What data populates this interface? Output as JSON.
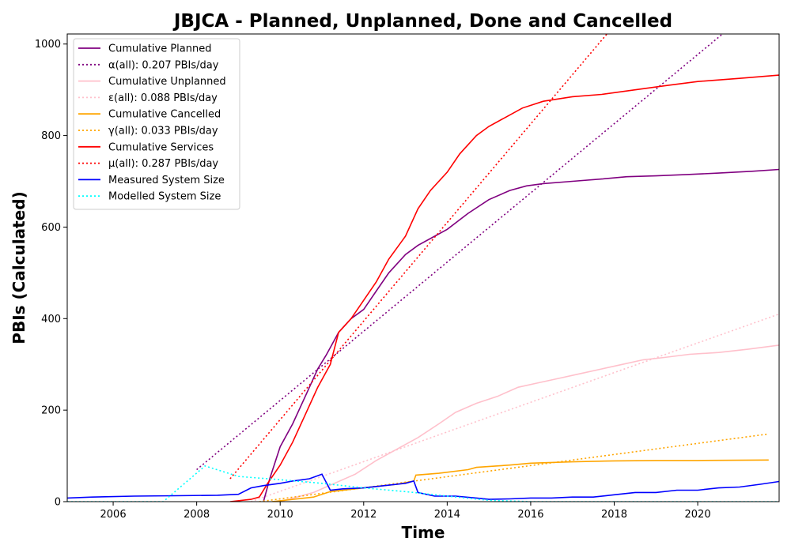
{
  "chart_data": {
    "type": "line",
    "title": "JBJCA - Planned, Unplanned, Done  and Cancelled",
    "xlabel": "Time",
    "ylabel": "PBIs (Calculated)",
    "xlim": [
      2004.9,
      2021.95
    ],
    "ylim": [
      0,
      1022
    ],
    "x_ticks": [
      2006,
      2008,
      2010,
      2012,
      2014,
      2016,
      2018,
      2020
    ],
    "y_ticks": [
      0,
      200,
      400,
      600,
      800,
      1000
    ],
    "grid": false,
    "legend_position": "top-left",
    "series": [
      {
        "name": "Cumulative Planned",
        "color": "#800080",
        "style": "solid",
        "points": [
          [
            2009.6,
            0
          ],
          [
            2009.75,
            50
          ],
          [
            2010.0,
            120
          ],
          [
            2010.3,
            170
          ],
          [
            2010.6,
            230
          ],
          [
            2010.9,
            290
          ],
          [
            2011.1,
            320
          ],
          [
            2011.4,
            370
          ],
          [
            2011.7,
            400
          ],
          [
            2012.0,
            420
          ],
          [
            2012.3,
            460
          ],
          [
            2012.6,
            500
          ],
          [
            2013.0,
            540
          ],
          [
            2013.3,
            560
          ],
          [
            2013.7,
            580
          ],
          [
            2014.0,
            595
          ],
          [
            2014.5,
            630
          ],
          [
            2015.0,
            660
          ],
          [
            2015.5,
            680
          ],
          [
            2015.9,
            690
          ],
          [
            2016.3,
            695
          ],
          [
            2017.0,
            700
          ],
          [
            2017.7,
            705
          ],
          [
            2018.3,
            710
          ],
          [
            2019.0,
            712
          ],
          [
            2019.8,
            715
          ],
          [
            2020.5,
            718
          ],
          [
            2021.3,
            722
          ],
          [
            2021.95,
            726
          ]
        ]
      },
      {
        "name": "α(all): 0.207 PBIs/day",
        "color": "#800080",
        "style": "dotted",
        "points": [
          [
            2008.0,
            70
          ],
          [
            2020.7,
            1030
          ]
        ]
      },
      {
        "name": "Cumulative Unplanned",
        "color": "#ffc0cb",
        "style": "solid",
        "points": [
          [
            2010.0,
            0
          ],
          [
            2010.8,
            20
          ],
          [
            2011.3,
            40
          ],
          [
            2011.8,
            60
          ],
          [
            2012.3,
            90
          ],
          [
            2012.8,
            115
          ],
          [
            2013.3,
            140
          ],
          [
            2013.8,
            170
          ],
          [
            2014.2,
            195
          ],
          [
            2014.7,
            215
          ],
          [
            2015.2,
            230
          ],
          [
            2015.7,
            250
          ],
          [
            2016.2,
            260
          ],
          [
            2016.7,
            270
          ],
          [
            2017.2,
            280
          ],
          [
            2017.7,
            290
          ],
          [
            2018.2,
            300
          ],
          [
            2018.7,
            310
          ],
          [
            2019.2,
            315
          ],
          [
            2019.8,
            322
          ],
          [
            2020.5,
            326
          ],
          [
            2021.2,
            333
          ],
          [
            2021.95,
            342
          ]
        ]
      },
      {
        "name": "ε(all): 0.088 PBIs/day",
        "color": "#ffc0cb",
        "style": "dotted",
        "points": [
          [
            2009.3,
            0
          ],
          [
            2021.95,
            410
          ]
        ]
      },
      {
        "name": "Cumulative Cancelled",
        "color": "#ffa500",
        "style": "solid",
        "points": [
          [
            2009.8,
            0
          ],
          [
            2010.8,
            10
          ],
          [
            2011.2,
            22
          ],
          [
            2012.0,
            30
          ],
          [
            2012.8,
            38
          ],
          [
            2013.2,
            45
          ],
          [
            2013.25,
            58
          ],
          [
            2013.8,
            62
          ],
          [
            2014.5,
            70
          ],
          [
            2014.7,
            75
          ],
          [
            2015.5,
            80
          ],
          [
            2016.0,
            84
          ],
          [
            2017.0,
            87
          ],
          [
            2018.0,
            89
          ],
          [
            2019.0,
            90
          ],
          [
            2020.0,
            90
          ],
          [
            2021.7,
            91
          ]
        ]
      },
      {
        "name": "γ(all): 0.033 PBIs/day",
        "color": "#ffa500",
        "style": "dotted",
        "points": [
          [
            2009.5,
            0
          ],
          [
            2021.7,
            148
          ]
        ]
      },
      {
        "name": "Cumulative Services",
        "color": "#ff0000",
        "style": "solid",
        "points": [
          [
            2008.8,
            0
          ],
          [
            2009.3,
            5
          ],
          [
            2009.5,
            10
          ],
          [
            2009.7,
            40
          ],
          [
            2010.0,
            80
          ],
          [
            2010.3,
            130
          ],
          [
            2010.6,
            190
          ],
          [
            2010.9,
            250
          ],
          [
            2011.2,
            300
          ],
          [
            2011.4,
            370
          ],
          [
            2011.7,
            400
          ],
          [
            2012.0,
            440
          ],
          [
            2012.3,
            480
          ],
          [
            2012.6,
            530
          ],
          [
            2013.0,
            580
          ],
          [
            2013.3,
            640
          ],
          [
            2013.6,
            680
          ],
          [
            2014.0,
            720
          ],
          [
            2014.3,
            760
          ],
          [
            2014.7,
            800
          ],
          [
            2015.0,
            820
          ],
          [
            2015.4,
            840
          ],
          [
            2015.8,
            860
          ],
          [
            2016.3,
            875
          ],
          [
            2017.0,
            885
          ],
          [
            2017.7,
            890
          ],
          [
            2018.5,
            900
          ],
          [
            2019.3,
            910
          ],
          [
            2020.0,
            918
          ],
          [
            2021.0,
            925
          ],
          [
            2021.95,
            932
          ]
        ]
      },
      {
        "name": "μ(all): 0.287 PBIs/day",
        "color": "#ff0000",
        "style": "dotted",
        "points": [
          [
            2008.8,
            50
          ],
          [
            2017.9,
            1030
          ]
        ]
      },
      {
        "name": "Measured System Size",
        "color": "#0000ff",
        "style": "solid",
        "points": [
          [
            2004.9,
            8
          ],
          [
            2005.5,
            10
          ],
          [
            2006.5,
            12
          ],
          [
            2007.5,
            13
          ],
          [
            2008.5,
            14
          ],
          [
            2009.0,
            16
          ],
          [
            2009.3,
            30
          ],
          [
            2009.6,
            35
          ],
          [
            2010.0,
            40
          ],
          [
            2010.3,
            45
          ],
          [
            2010.7,
            50
          ],
          [
            2011.0,
            60
          ],
          [
            2011.2,
            25
          ],
          [
            2011.5,
            28
          ],
          [
            2012.0,
            30
          ],
          [
            2012.5,
            35
          ],
          [
            2013.0,
            40
          ],
          [
            2013.2,
            45
          ],
          [
            2013.3,
            20
          ],
          [
            2013.7,
            12
          ],
          [
            2014.2,
            12
          ],
          [
            2014.7,
            8
          ],
          [
            2015.0,
            5
          ],
          [
            2015.5,
            6
          ],
          [
            2016.0,
            8
          ],
          [
            2016.5,
            8
          ],
          [
            2017.0,
            10
          ],
          [
            2017.5,
            10
          ],
          [
            2018.0,
            15
          ],
          [
            2018.5,
            20
          ],
          [
            2019.0,
            20
          ],
          [
            2019.5,
            25
          ],
          [
            2020.0,
            25
          ],
          [
            2020.5,
            30
          ],
          [
            2021.0,
            32
          ],
          [
            2021.5,
            38
          ],
          [
            2021.95,
            44
          ]
        ]
      },
      {
        "name": "Modelled System Size",
        "color": "#00ffff",
        "style": "dotted",
        "points": [
          [
            2004.9,
            0
          ],
          [
            2007.2,
            0
          ],
          [
            2008.2,
            78
          ],
          [
            2009.0,
            55
          ],
          [
            2010.0,
            48
          ],
          [
            2011.0,
            40
          ],
          [
            2012.0,
            30
          ],
          [
            2013.0,
            22
          ],
          [
            2014.0,
            12
          ],
          [
            2015.0,
            3
          ],
          [
            2016.0,
            0
          ],
          [
            2021.95,
            0
          ]
        ]
      }
    ]
  }
}
